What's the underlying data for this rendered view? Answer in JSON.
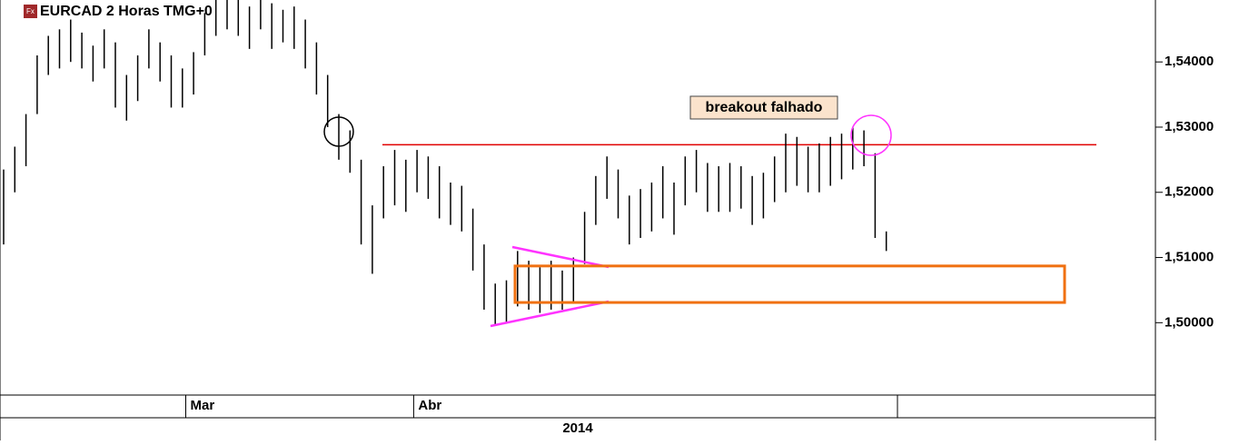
{
  "chart_data": {
    "type": "ohlc",
    "title": "EURCAD 2 Horas TMG+0",
    "icon_label": "Fx",
    "color": "#000000",
    "high": [
      1.5235,
      1.527,
      1.532,
      1.541,
      1.544,
      1.545,
      1.5465,
      1.5445,
      1.5425,
      1.545,
      1.543,
      1.538,
      1.541,
      1.545,
      1.543,
      1.541,
      1.539,
      1.5415,
      1.5475,
      1.5495,
      1.5495,
      1.5495,
      1.5485,
      1.5495,
      1.549,
      1.548,
      1.5485,
      1.5465,
      1.543,
      1.538,
      1.532,
      1.5295,
      1.525,
      1.518,
      1.524,
      1.5265,
      1.525,
      1.5265,
      1.5255,
      1.524,
      1.5215,
      1.521,
      1.5175,
      1.512,
      1.506,
      1.5065,
      1.511,
      1.5095,
      1.5085,
      1.5095,
      1.508,
      1.51,
      1.517,
      1.5225,
      1.5255,
      1.5235,
      1.5195,
      1.5205,
      1.5215,
      1.524,
      1.5215,
      1.5255,
      1.5265,
      1.5245,
      1.524,
      1.5245,
      1.524,
      1.5225,
      1.523,
      1.5255,
      1.529,
      1.5285,
      1.527,
      1.5275,
      1.5285,
      1.529,
      1.53,
      1.5295,
      1.526,
      1.514
    ],
    "low": [
      1.512,
      1.52,
      1.524,
      1.532,
      1.538,
      1.539,
      1.54,
      1.539,
      1.537,
      1.539,
      1.533,
      1.531,
      1.534,
      1.539,
      1.537,
      1.533,
      1.533,
      1.535,
      1.541,
      1.544,
      1.545,
      1.544,
      1.542,
      1.545,
      1.542,
      1.543,
      1.542,
      1.539,
      1.535,
      1.53,
      1.525,
      1.523,
      1.512,
      1.5075,
      1.516,
      1.518,
      1.517,
      1.52,
      1.519,
      1.516,
      1.515,
      1.514,
      1.508,
      1.502,
      1.4995,
      1.5,
      1.5025,
      1.502,
      1.5015,
      1.502,
      1.502,
      1.503,
      1.509,
      1.515,
      1.519,
      1.516,
      1.512,
      1.513,
      1.514,
      1.516,
      1.5135,
      1.518,
      1.52,
      1.517,
      1.517,
      1.517,
      1.5175,
      1.515,
      1.516,
      1.5185,
      1.52,
      1.521,
      1.52,
      1.52,
      1.521,
      1.522,
      1.5235,
      1.524,
      1.513,
      1.511
    ],
    "ylim": [
      1.4889,
      1.5495
    ],
    "yticks": [
      {
        "value": 1.5,
        "label": "1,50000"
      },
      {
        "value": 1.51,
        "label": "1,51000"
      },
      {
        "value": 1.52,
        "label": "1,52000"
      },
      {
        "value": 1.53,
        "label": "1,53000"
      },
      {
        "value": 1.54,
        "label": "1,54000"
      }
    ],
    "xticks": [
      {
        "value": 16.3,
        "label": "Mar"
      },
      {
        "value": 36.7,
        "label": "Abr"
      }
    ],
    "year_label": "2014",
    "resistance": {
      "value": 1.5273,
      "color": "#e00000"
    },
    "zone": {
      "top": 1.5087,
      "bottom": 1.5031,
      "color": "#f07010"
    },
    "annotation": "breakout falhado"
  }
}
